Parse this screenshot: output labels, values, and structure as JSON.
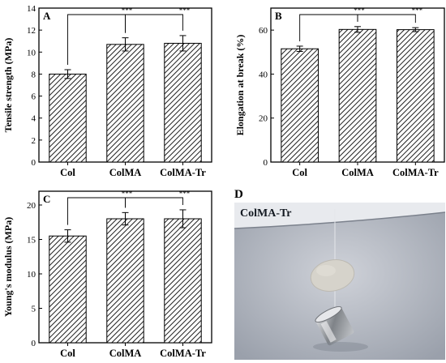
{
  "chart_data": [
    {
      "panel": "A",
      "type": "bar",
      "categories": [
        "Col",
        "ColMA",
        "ColMA-Tr"
      ],
      "values": [
        8.0,
        10.7,
        10.8
      ],
      "errors": [
        0.4,
        0.6,
        0.7
      ],
      "ylabel": "Tensile strength (MPa)",
      "xlabel": "",
      "ylim": [
        0,
        14
      ],
      "yticks": [
        0,
        2,
        4,
        6,
        8,
        10,
        12,
        14
      ],
      "significance": [
        {
          "from": "Col",
          "to": "ColMA",
          "label": "***"
        },
        {
          "from": "ColMA",
          "to": "ColMA-Tr",
          "label": "***"
        }
      ]
    },
    {
      "panel": "B",
      "type": "bar",
      "categories": [
        "Col",
        "ColMA",
        "ColMA-Tr"
      ],
      "values": [
        51.5,
        60.3,
        60.2
      ],
      "errors": [
        1.2,
        1.3,
        0.9
      ],
      "ylabel": "Elongation at break (%)",
      "xlabel": "",
      "ylim": [
        0,
        70
      ],
      "yticks": [
        0,
        20,
        40,
        60
      ],
      "significance": [
        {
          "from": "Col",
          "to": "ColMA",
          "label": "***"
        },
        {
          "from": "ColMA",
          "to": "ColMA-Tr",
          "label": "***"
        }
      ]
    },
    {
      "panel": "C",
      "type": "bar",
      "categories": [
        "Col",
        "ColMA",
        "ColMA-Tr"
      ],
      "values": [
        15.5,
        18.0,
        18.0
      ],
      "errors": [
        0.9,
        0.9,
        1.3
      ],
      "ylabel": "Young's modulus (MPa)",
      "xlabel": "",
      "ylim": [
        0,
        22
      ],
      "yticks": [
        0,
        5,
        10,
        15,
        20
      ],
      "significance": [
        {
          "from": "Col",
          "to": "ColMA",
          "label": "***"
        },
        {
          "from": "ColMA",
          "to": "ColMA-Tr",
          "label": "***"
        }
      ]
    }
  ],
  "photo": {
    "panel": "D",
    "label": "ColMA-Tr",
    "colors": {
      "backdrop": "#c6cad2",
      "top_band": "#e9ebee",
      "film": "#d4d1c8",
      "weight": "#8a8d92"
    }
  },
  "colors": {
    "bar_fill": "#ffffff",
    "hatch": "#222222",
    "axis": "#000000"
  }
}
